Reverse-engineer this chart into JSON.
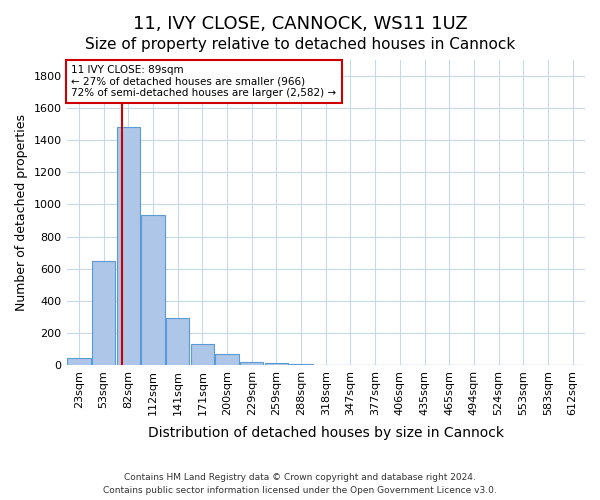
{
  "title": "11, IVY CLOSE, CANNOCK, WS11 1UZ",
  "subtitle": "Size of property relative to detached houses in Cannock",
  "xlabel": "Distribution of detached houses by size in Cannock",
  "ylabel": "Number of detached properties",
  "bin_labels": [
    "23sqm",
    "53sqm",
    "82sqm",
    "112sqm",
    "141sqm",
    "171sqm",
    "200sqm",
    "229sqm",
    "259sqm",
    "288sqm",
    "318sqm",
    "347sqm",
    "377sqm",
    "406sqm",
    "435sqm",
    "465sqm",
    "494sqm",
    "524sqm",
    "553sqm",
    "583sqm",
    "612sqm"
  ],
  "bar_heights": [
    40,
    650,
    1480,
    935,
    290,
    130,
    65,
    20,
    10,
    5,
    2,
    1,
    0,
    0,
    0,
    0,
    0,
    0,
    0,
    0,
    0
  ],
  "bar_color": "#aec6e8",
  "bar_edge_color": "#5b9bd5",
  "ylim": [
    0,
    1900
  ],
  "yticks": [
    0,
    200,
    400,
    600,
    800,
    1000,
    1200,
    1400,
    1600,
    1800
  ],
  "property_size": 89,
  "property_bin_index": 2,
  "vline_color": "#cc0000",
  "annotation_line1": "11 IVY CLOSE: 89sqm",
  "annotation_line2": "← 27% of detached houses are smaller (966)",
  "annotation_line3": "72% of semi-detached houses are larger (2,582) →",
  "annotation_box_color": "#ffffff",
  "annotation_box_edge_color": "#cc0000",
  "footer_line1": "Contains HM Land Registry data © Crown copyright and database right 2024.",
  "footer_line2": "Contains public sector information licensed under the Open Government Licence v3.0.",
  "background_color": "#ffffff",
  "grid_color": "#c8d8e8",
  "title_fontsize": 13,
  "subtitle_fontsize": 11,
  "axis_label_fontsize": 9,
  "tick_fontsize": 8
}
